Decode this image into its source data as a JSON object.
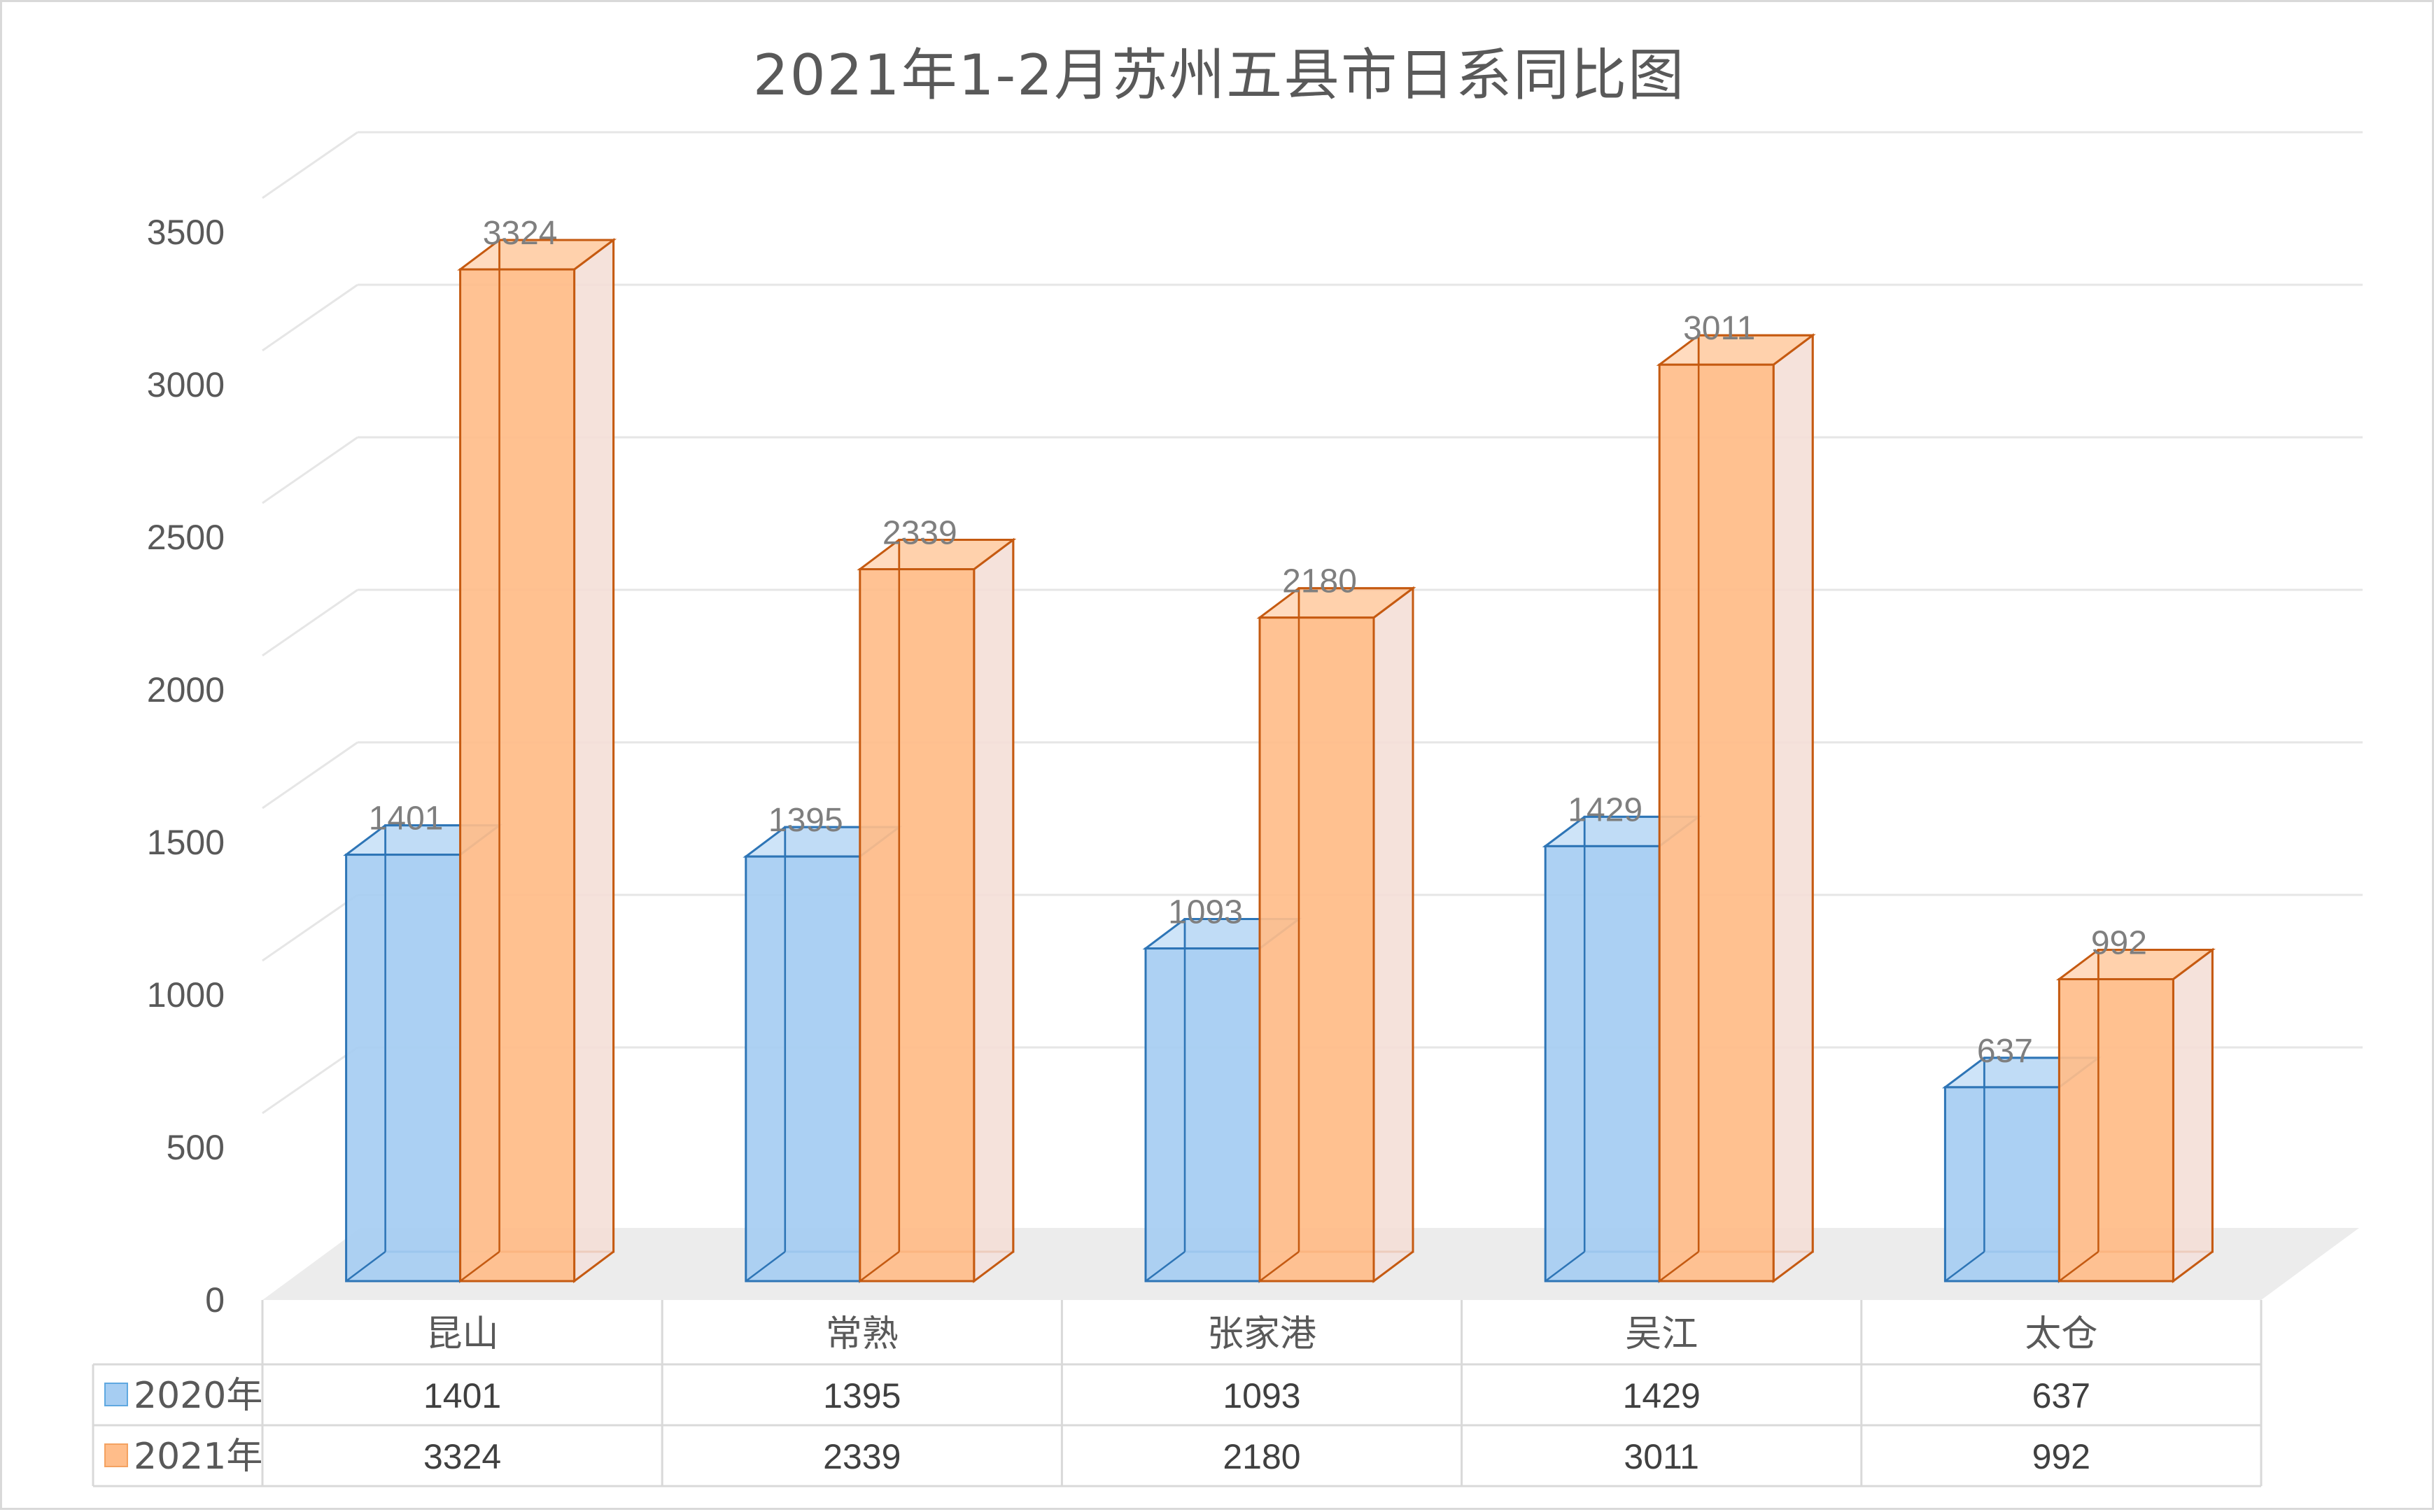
{
  "chart_data": {
    "type": "bar",
    "style": "3d-clustered-column-with-data-table",
    "title": "2021年1-2月苏州五县市日系同比图",
    "categories": [
      "昆山",
      "常熟",
      "张家港",
      "吴江",
      "太仓"
    ],
    "series": [
      {
        "name": "2020年",
        "values": [
          1401,
          1395,
          1093,
          1429,
          637
        ],
        "color": "#a6cdf2",
        "edge_color": "#2e75b6"
      },
      {
        "name": "2021年",
        "values": [
          3324,
          2339,
          2180,
          3011,
          992
        ],
        "color": "#ffbd8a",
        "edge_color": "#c55a11"
      }
    ],
    "ylim": [
      0,
      3500
    ],
    "yticks": [
      0,
      500,
      1000,
      1500,
      2000,
      2500,
      3000,
      3500
    ],
    "grid": true,
    "legend": "data-table-left",
    "data_labels": true
  }
}
